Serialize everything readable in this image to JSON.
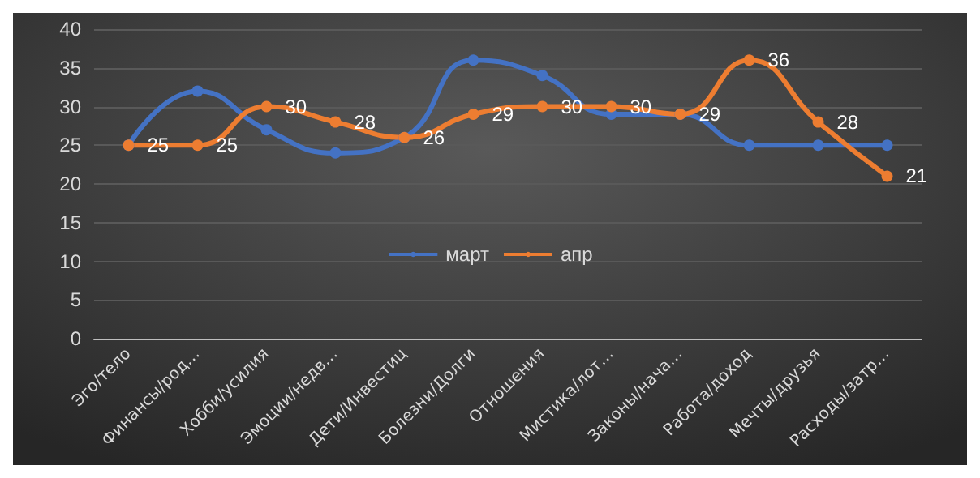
{
  "chart_data": {
    "type": "line",
    "categories": [
      "Эго/тело",
      "Финансы/род…",
      "Хобби/усилия",
      "Эмоции/недв…",
      "Дети/Инвестиц",
      "Болезни/Долги",
      "Отношения",
      "Мистика/лот…",
      "Законы/нача…",
      "Работа/доход",
      "Мечты/друзья",
      "Расходы/затр…"
    ],
    "series": [
      {
        "name": "март",
        "color": "#4472c4",
        "values": [
          25,
          32,
          27,
          24,
          26,
          36,
          34,
          29,
          29,
          25,
          25,
          25
        ]
      },
      {
        "name": "апр",
        "color": "#ed7d31",
        "values": [
          25,
          25,
          30,
          28,
          26,
          29,
          30,
          30,
          29,
          36,
          28,
          21
        ],
        "value_labels": [
          "25",
          "25",
          "30",
          "28",
          "26",
          "29",
          "30",
          "30",
          "29",
          "36",
          "28",
          "21"
        ]
      }
    ],
    "ylim": [
      0,
      40
    ],
    "yticks": [
      0,
      5,
      10,
      15,
      20,
      25,
      30,
      35,
      40
    ],
    "grid": "y",
    "legend": "center",
    "marker": "circle"
  }
}
